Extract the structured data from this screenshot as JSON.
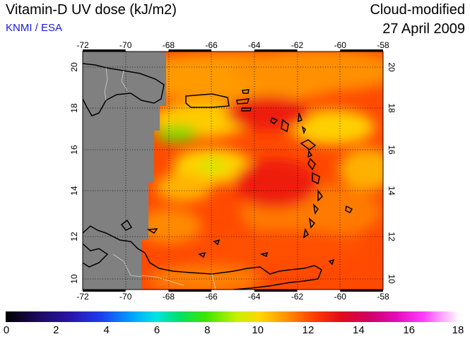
{
  "header": {
    "title": "Vitamin-D UV dose (kJ/m2)",
    "source": "KNMI / ESA",
    "mode": "Cloud-modified",
    "date": "27 April 2009"
  },
  "map": {
    "lon_range": [
      -72,
      -58
    ],
    "lat_range": [
      9.5,
      20.5
    ],
    "top_lon_ticks": [
      "-72",
      "-70",
      "-68",
      "-66",
      "-64",
      "-62",
      "-60",
      "-58"
    ],
    "bottom_lon_ticks": [
      "-72",
      "-70",
      "-68",
      "-66",
      "-64",
      "-62",
      "-60",
      "-58"
    ],
    "lat_ticks": [
      "10",
      "12",
      "14",
      "16",
      "18",
      "20"
    ],
    "no_data_color": "#808080",
    "grid": "dotted",
    "dominant_value_range_kJ_m2": [
      11,
      13
    ]
  },
  "colorbar": {
    "labels": [
      "0",
      "2",
      "4",
      "6",
      "8",
      "10",
      "12",
      "14",
      "16",
      "18"
    ],
    "range": [
      0,
      18
    ]
  }
}
